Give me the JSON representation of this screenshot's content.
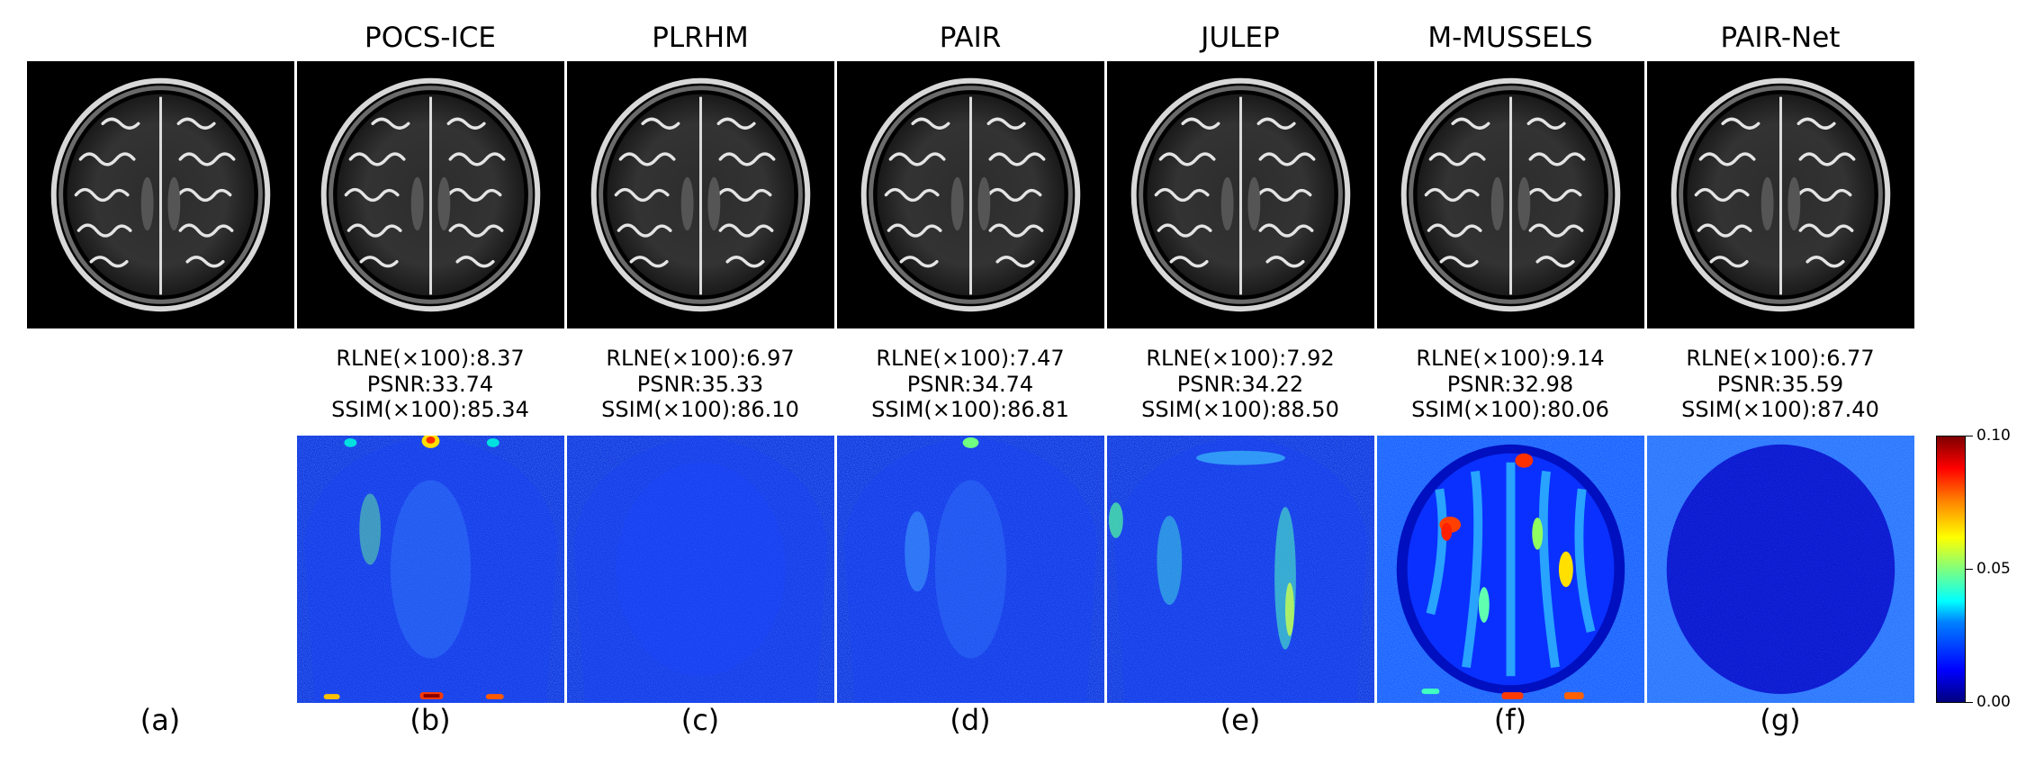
{
  "methods": [
    {
      "key": "a",
      "title": "",
      "panel_label": "(a)",
      "rlne": "",
      "psnr": "",
      "ssim": ""
    },
    {
      "key": "b",
      "title": "POCS-ICE",
      "panel_label": "(b)",
      "rlne": "RLNE(×100):8.37",
      "psnr": "PSNR:33.74",
      "ssim": "SSIM(×100):85.34"
    },
    {
      "key": "c",
      "title": "PLRHM",
      "panel_label": "(c)",
      "rlne": "RLNE(×100):6.97",
      "psnr": "PSNR:35.33",
      "ssim": "SSIM(×100):86.10"
    },
    {
      "key": "d",
      "title": "PAIR",
      "panel_label": "(d)",
      "rlne": "RLNE(×100):7.47",
      "psnr": "PSNR:34.74",
      "ssim": "SSIM(×100):86.81"
    },
    {
      "key": "e",
      "title": "JULEP",
      "panel_label": "(e)",
      "rlne": "RLNE(×100):7.92",
      "psnr": "PSNR:34.22",
      "ssim": "SSIM(×100):88.50"
    },
    {
      "key": "f",
      "title": "M-MUSSELS",
      "panel_label": "(f)",
      "rlne": "RLNE(×100):9.14",
      "psnr": "PSNR:32.98",
      "ssim": "SSIM(×100):80.06"
    },
    {
      "key": "g",
      "title": "PAIR-Net",
      "panel_label": "(g)",
      "rlne": "RLNE(×100):6.77",
      "psnr": "PSNR:35.59",
      "ssim": "SSIM(×100):87.40"
    }
  ],
  "colorbar": {
    "max_label": "0.10",
    "mid_label": "0.05",
    "min_label": "0.00",
    "colormap": "jet"
  },
  "colors": {
    "mri_background": "#000000",
    "error_map_base": "#1530e6"
  }
}
